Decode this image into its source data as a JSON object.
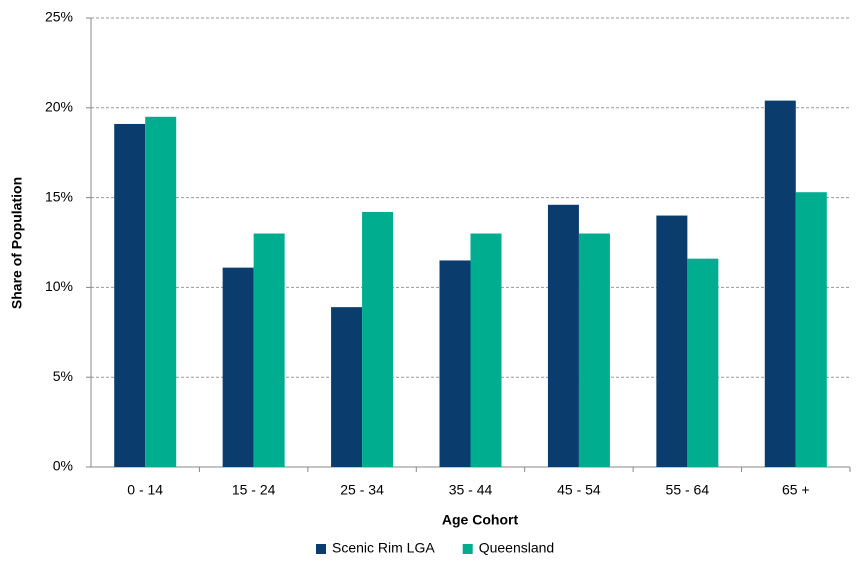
{
  "chart_data": {
    "type": "bar",
    "x_label": "Age Cohort",
    "y_label": "Share of Population",
    "categories": [
      "0 - 14",
      "15 - 24",
      "25 - 34",
      "35 - 44",
      "45 - 54",
      "55 - 64",
      "65 +"
    ],
    "series": [
      {
        "name": "Scenic Rim LGA",
        "color": "#0b3c6e",
        "values": [
          19.1,
          11.1,
          8.9,
          11.5,
          14.6,
          14.0,
          20.4
        ]
      },
      {
        "name": "Queensland",
        "color": "#00ad8e",
        "values": [
          19.5,
          13.0,
          14.2,
          13.0,
          13.0,
          11.6,
          15.3
        ]
      }
    ],
    "ylim": [
      0,
      25
    ],
    "yticks": [
      {
        "value": 0,
        "label": "0%"
      },
      {
        "value": 5,
        "label": "5%"
      },
      {
        "value": 10,
        "label": "10%"
      },
      {
        "value": 15,
        "label": "15%"
      },
      {
        "value": 20,
        "label": "20%"
      },
      {
        "value": 25,
        "label": "25%"
      }
    ],
    "grid": true,
    "legend": "bottom"
  }
}
